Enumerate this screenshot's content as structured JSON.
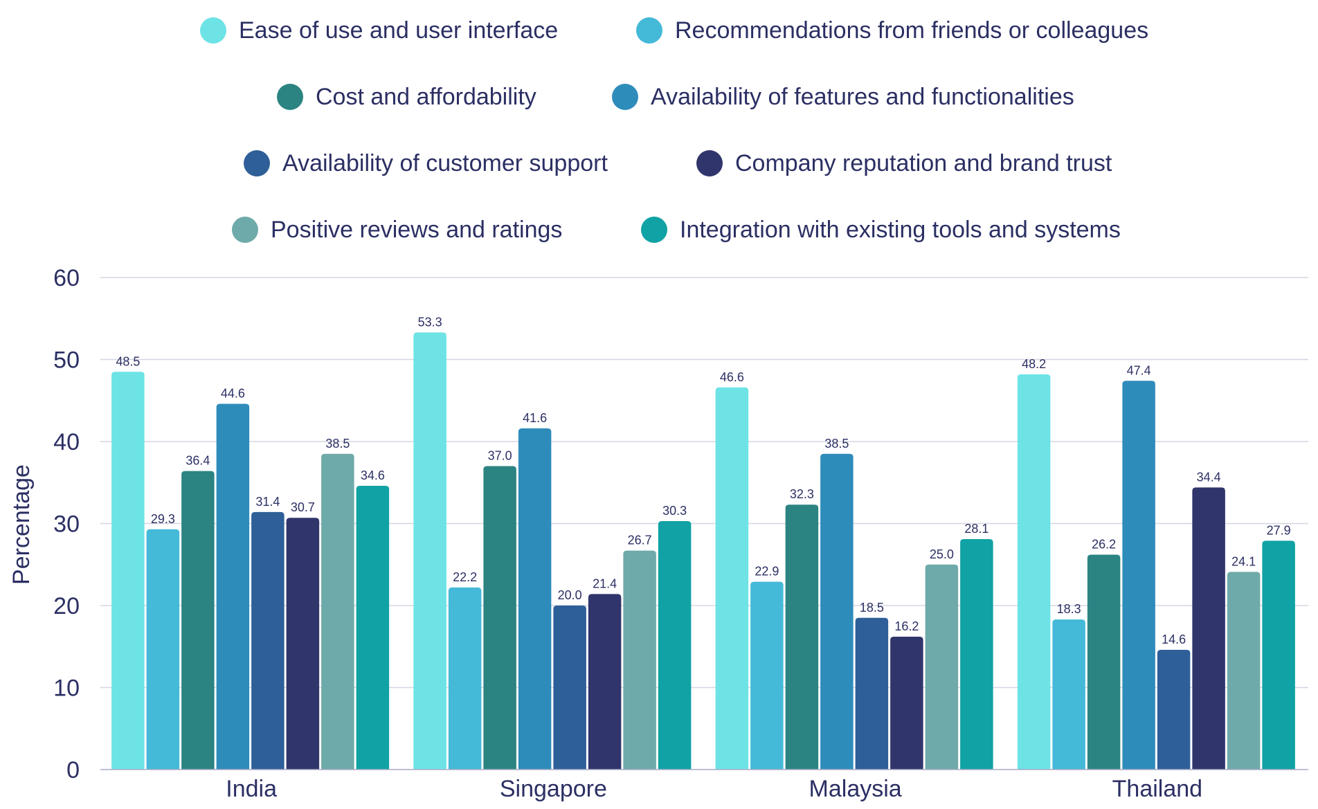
{
  "chart_data": {
    "type": "bar",
    "title": "",
    "xlabel": "",
    "ylabel": "Percentage",
    "ylim": [
      0,
      60
    ],
    "yticks": [
      0,
      10,
      20,
      30,
      40,
      50,
      60
    ],
    "grid": true,
    "legend_position": "top-center",
    "categories": [
      "India",
      "Singapore",
      "Malaysia",
      "Thailand"
    ],
    "series": [
      {
        "name": "Ease of use and user interface",
        "color": "#6de3e6",
        "values": [
          48.5,
          53.3,
          46.6,
          48.2
        ],
        "labels": [
          "48.5",
          "53.3",
          "46.6",
          "48.2"
        ]
      },
      {
        "name": "Recommendations from friends or colleagues",
        "color": "#45b9d8",
        "values": [
          29.3,
          22.2,
          22.9,
          18.3
        ],
        "labels": [
          "29.3",
          "22.2",
          "22.9",
          "18.3"
        ]
      },
      {
        "name": "Cost and affordability",
        "color": "#2b8482",
        "values": [
          36.4,
          37.0,
          32.3,
          26.2
        ],
        "labels": [
          "36.4",
          "37.0",
          "32.3",
          "26.2"
        ]
      },
      {
        "name": "Availability of features and functionalities",
        "color": "#2e8cbb",
        "values": [
          44.6,
          41.6,
          38.5,
          47.4
        ],
        "labels": [
          "44.6",
          "41.6",
          "38.5",
          "47.4"
        ]
      },
      {
        "name": "Availability of customer support",
        "color": "#2e5f98",
        "values": [
          31.4,
          20.0,
          18.5,
          14.6
        ],
        "labels": [
          "31.4",
          "20.0",
          "18.5",
          "14.6"
        ]
      },
      {
        "name": "Company reputation and brand trust",
        "color": "#30356b",
        "values": [
          30.7,
          21.4,
          16.2,
          34.4
        ],
        "labels": [
          "30.7",
          "21.4",
          "16.2",
          "34.4"
        ]
      },
      {
        "name": "Positive reviews and ratings",
        "color": "#6eaaa9",
        "values": [
          38.5,
          26.7,
          25.0,
          24.1
        ],
        "labels": [
          "38.5",
          "26.7",
          "25.0",
          "24.1"
        ]
      },
      {
        "name": "Integration with existing tools and systems",
        "color": "#10a2a4",
        "values": [
          34.6,
          30.3,
          28.1,
          27.9
        ],
        "labels": [
          "34.6",
          "30.3",
          "28.1",
          "27.9"
        ]
      }
    ],
    "colors": {
      "text": "#2b2f63",
      "grid": "#d3d5e2"
    }
  }
}
